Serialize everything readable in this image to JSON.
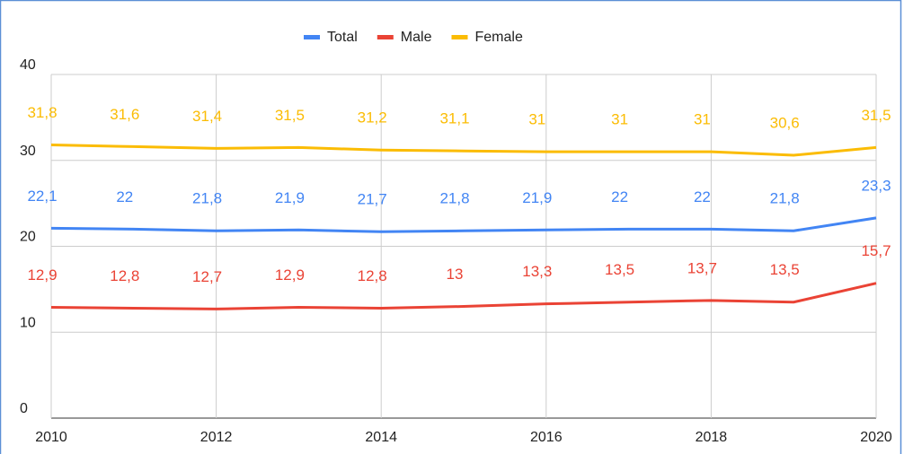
{
  "chart_data": {
    "type": "line",
    "x": [
      2010,
      2011,
      2012,
      2013,
      2014,
      2015,
      2016,
      2017,
      2018,
      2019,
      2020
    ],
    "series": [
      {
        "name": "Total",
        "color": "#4285f4",
        "values": [
          22.1,
          22,
          21.8,
          21.9,
          21.7,
          21.8,
          21.9,
          22,
          22,
          21.8,
          23.3
        ],
        "value_labels": [
          "22,1",
          "22",
          "21,8",
          "21,9",
          "21,7",
          "21,8",
          "21,9",
          "22",
          "22",
          "21,8",
          "23,3"
        ]
      },
      {
        "name": "Male",
        "color": "#ea4335",
        "values": [
          12.9,
          12.8,
          12.7,
          12.9,
          12.8,
          13,
          13.3,
          13.5,
          13.7,
          13.5,
          15.7
        ],
        "value_labels": [
          "12,9",
          "12,8",
          "12,7",
          "12,9",
          "12,8",
          "13",
          "13,3",
          "13,5",
          "13,7",
          "13,5",
          "15,7"
        ]
      },
      {
        "name": "Female",
        "color": "#fbbc04",
        "values": [
          31.8,
          31.6,
          31.4,
          31.5,
          31.2,
          31.1,
          31,
          31,
          31,
          30.6,
          31.5
        ],
        "value_labels": [
          "31,8",
          "31,6",
          "31,4",
          "31,5",
          "31,2",
          "31,1",
          "31",
          "31",
          "31",
          "30,6",
          "31,5"
        ]
      }
    ],
    "xlim": [
      2010,
      2020
    ],
    "xticks": [
      2010,
      2012,
      2014,
      2016,
      2018,
      2020
    ],
    "ylim": [
      0,
      40
    ],
    "yticks": [
      0,
      10,
      20,
      30,
      40
    ],
    "grid": true,
    "legend": "top"
  }
}
